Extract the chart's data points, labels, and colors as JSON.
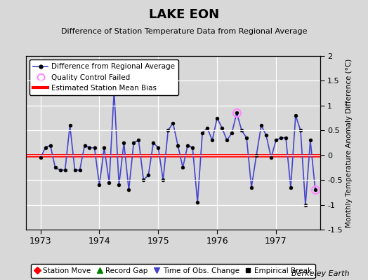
{
  "title": "LAKE EON",
  "subtitle": "Difference of Station Temperature Data from Regional Average",
  "ylabel_right": "Monthly Temperature Anomaly Difference (°C)",
  "ylim": [
    -1.5,
    2.0
  ],
  "yticks": [
    -1.5,
    -1.0,
    -0.5,
    0.0,
    0.5,
    1.0,
    1.5,
    2.0
  ],
  "xlim": [
    1972.75,
    1977.75
  ],
  "xticks": [
    1973,
    1974,
    1975,
    1976,
    1977
  ],
  "bg_color": "#d8d8d8",
  "bias_value": 0.0,
  "watermark": "Berkeley Earth",
  "line_color": "#4444cc",
  "bias_color": "#ff0000",
  "qc_color": "#ff88ff",
  "months": [
    1973.0,
    1973.083,
    1973.167,
    1973.25,
    1973.333,
    1973.417,
    1973.5,
    1973.583,
    1973.667,
    1973.75,
    1973.833,
    1973.917,
    1974.0,
    1974.083,
    1974.167,
    1974.25,
    1974.333,
    1974.417,
    1974.5,
    1974.583,
    1974.667,
    1974.75,
    1974.833,
    1974.917,
    1975.0,
    1975.083,
    1975.167,
    1975.25,
    1975.333,
    1975.417,
    1975.5,
    1975.583,
    1975.667,
    1975.75,
    1975.833,
    1975.917,
    1976.0,
    1976.083,
    1976.167,
    1976.25,
    1976.333,
    1976.417,
    1976.5,
    1976.583,
    1976.667,
    1976.75,
    1976.833,
    1976.917,
    1977.0,
    1977.083,
    1977.167,
    1977.25,
    1977.333,
    1977.417,
    1977.5,
    1977.583,
    1977.667
  ],
  "values": [
    -0.05,
    0.15,
    0.2,
    -0.25,
    -0.3,
    -0.3,
    0.6,
    -0.3,
    -0.3,
    0.2,
    0.15,
    0.15,
    -0.6,
    0.15,
    -0.55,
    1.3,
    -0.6,
    0.25,
    -0.7,
    0.25,
    0.3,
    -0.5,
    -0.4,
    0.25,
    0.15,
    -0.5,
    0.5,
    0.65,
    0.2,
    -0.25,
    0.2,
    0.15,
    -0.95,
    0.45,
    0.55,
    0.3,
    0.75,
    0.55,
    0.3,
    0.45,
    0.85,
    0.5,
    0.35,
    -0.65,
    0.0,
    0.6,
    0.4,
    -0.05,
    0.3,
    0.35,
    0.35,
    -0.65,
    0.8,
    0.5,
    -1.0,
    0.3,
    -0.7
  ],
  "qc_failed_indices": [
    40,
    56
  ],
  "marker_size": 3.5,
  "line_width": 1.2,
  "bias_linewidth": 3.5
}
